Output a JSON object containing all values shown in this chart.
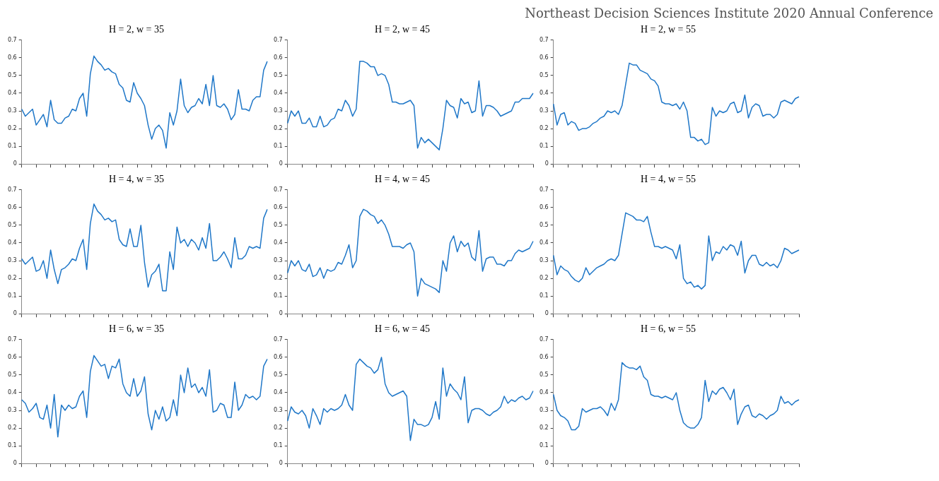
{
  "chart_data": [
    {
      "type": "line",
      "title": "H = 2, w = 35",
      "categories": [
        null,
        null,
        null,
        null,
        null,
        null,
        null,
        null,
        null,
        null,
        null,
        null,
        null,
        null,
        null,
        null,
        null,
        null,
        null,
        null,
        null,
        null,
        null,
        null,
        null,
        null,
        null,
        null,
        null,
        null,
        null,
        null,
        null,
        null,
        null,
        null,
        null,
        null,
        null,
        null,
        null,
        null,
        null,
        null,
        null,
        null,
        null,
        null,
        null,
        null,
        null,
        null,
        null,
        null,
        null,
        null,
        null,
        null,
        null,
        null,
        null,
        null,
        null,
        null,
        null,
        null,
        null,
        null,
        null
      ],
      "series": [
        {
          "color": "#1f77c8",
          "values": [
            0.31,
            0.27,
            0.29,
            0.31,
            0.22,
            0.25,
            0.28,
            0.21,
            0.36,
            0.25,
            0.23,
            0.23,
            0.26,
            0.27,
            0.31,
            0.3,
            0.37,
            0.4,
            0.27,
            0.51,
            0.61,
            0.58,
            0.56,
            0.53,
            0.54,
            0.52,
            0.51,
            0.45,
            0.43,
            0.36,
            0.35,
            0.46,
            0.4,
            0.37,
            0.33,
            0.22,
            0.14,
            0.2,
            0.22,
            0.19,
            0.09,
            0.29,
            0.22,
            0.3,
            0.48,
            0.33,
            0.29,
            0.32,
            0.33,
            0.37,
            0.34,
            0.45,
            0.33,
            0.5,
            0.33,
            0.32,
            0.34,
            0.31,
            0.25,
            0.28,
            0.42,
            0.31,
            0.31,
            0.3,
            0.36,
            0.38,
            0.38,
            0.53,
            0.58
          ]
        }
      ],
      "ylim": [
        0,
        0.7
      ],
      "yticks": [
        0,
        0.1,
        0.2,
        0.3,
        0.4,
        0.5,
        0.6,
        0.7
      ],
      "tick_labels": "y",
      "grid": false,
      "legend": false
    },
    {
      "type": "line",
      "title": "H = 2, w = 45",
      "categories": [
        null,
        null,
        null,
        null,
        null,
        null,
        null,
        null,
        null,
        null,
        null,
        null,
        null,
        null,
        null,
        null,
        null,
        null,
        null,
        null,
        null,
        null,
        null,
        null,
        null,
        null,
        null,
        null,
        null,
        null,
        null,
        null,
        null,
        null,
        null,
        null,
        null,
        null,
        null,
        null,
        null,
        null,
        null,
        null,
        null,
        null,
        null,
        null,
        null,
        null,
        null,
        null,
        null,
        null,
        null,
        null,
        null,
        null,
        null,
        null,
        null,
        null,
        null,
        null,
        null,
        null,
        null,
        null,
        null
      ],
      "series": [
        {
          "color": "#1f77c8",
          "values": [
            0.23,
            0.3,
            0.27,
            0.3,
            0.23,
            0.23,
            0.26,
            0.21,
            0.21,
            0.27,
            0.21,
            0.22,
            0.25,
            0.26,
            0.31,
            0.3,
            0.36,
            0.33,
            0.27,
            0.31,
            0.58,
            0.58,
            0.57,
            0.55,
            0.55,
            0.5,
            0.51,
            0.5,
            0.45,
            0.35,
            0.35,
            0.34,
            0.34,
            0.35,
            0.36,
            0.33,
            0.09,
            0.15,
            0.12,
            0.14,
            0.12,
            0.1,
            0.08,
            0.2,
            0.36,
            0.33,
            0.32,
            0.26,
            0.37,
            0.34,
            0.35,
            0.29,
            0.3,
            0.47,
            0.27,
            0.33,
            0.33,
            0.32,
            0.3,
            0.27,
            0.28,
            0.29,
            0.3,
            0.35,
            0.35,
            0.37,
            0.37,
            0.37,
            0.4
          ]
        }
      ],
      "ylim": [
        0,
        0.7
      ],
      "yticks": [
        0,
        0.1,
        0.2,
        0.3,
        0.4,
        0.5,
        0.6,
        0.7
      ],
      "tick_labels": "y",
      "grid": false,
      "legend": false
    },
    {
      "type": "line",
      "title": "H = 2, w = 55",
      "annotations": [
        "Northeast Decision Sciences Institute 2020 Annual Conference"
      ],
      "categories": [
        null,
        null,
        null,
        null,
        null,
        null,
        null,
        null,
        null,
        null,
        null,
        null,
        null,
        null,
        null,
        null,
        null,
        null,
        null,
        null,
        null,
        null,
        null,
        null,
        null,
        null,
        null,
        null,
        null,
        null,
        null,
        null,
        null,
        null,
        null,
        null,
        null,
        null,
        null,
        null,
        null,
        null,
        null,
        null,
        null,
        null,
        null,
        null,
        null,
        null,
        null,
        null,
        null,
        null,
        null,
        null,
        null,
        null,
        null,
        null,
        null,
        null,
        null,
        null,
        null,
        null,
        null,
        null,
        null
      ],
      "series": [
        {
          "color": "#1f77c8",
          "values": [
            0.34,
            0.22,
            0.28,
            0.29,
            0.22,
            0.24,
            0.23,
            0.19,
            0.2,
            0.2,
            0.21,
            0.23,
            0.24,
            0.26,
            0.27,
            0.3,
            0.29,
            0.3,
            0.28,
            0.33,
            0.45,
            0.57,
            0.56,
            0.56,
            0.53,
            0.52,
            0.51,
            0.48,
            0.47,
            0.44,
            0.35,
            0.34,
            0.34,
            0.33,
            0.34,
            0.31,
            0.35,
            0.3,
            0.15,
            0.15,
            0.13,
            0.14,
            0.11,
            0.12,
            0.32,
            0.27,
            0.3,
            0.29,
            0.3,
            0.34,
            0.35,
            0.29,
            0.3,
            0.39,
            0.26,
            0.32,
            0.34,
            0.33,
            0.27,
            0.28,
            0.28,
            0.26,
            0.28,
            0.35,
            0.36,
            0.35,
            0.34,
            0.37,
            0.38
          ]
        }
      ],
      "ylim": [
        0,
        0.7
      ],
      "yticks": [
        0,
        0.1,
        0.2,
        0.3,
        0.4,
        0.5,
        0.6,
        0.7
      ],
      "tick_labels": "y",
      "grid": false,
      "legend": false
    },
    {
      "type": "line",
      "title": "H = 4, w = 35",
      "categories": [
        null,
        null,
        null,
        null,
        null,
        null,
        null,
        null,
        null,
        null,
        null,
        null,
        null,
        null,
        null,
        null,
        null,
        null,
        null,
        null,
        null,
        null,
        null,
        null,
        null,
        null,
        null,
        null,
        null,
        null,
        null,
        null,
        null,
        null,
        null,
        null,
        null,
        null,
        null,
        null,
        null,
        null,
        null,
        null,
        null,
        null,
        null,
        null,
        null,
        null,
        null,
        null,
        null,
        null,
        null,
        null,
        null,
        null,
        null,
        null,
        null,
        null,
        null,
        null,
        null,
        null,
        null,
        null,
        null
      ],
      "series": [
        {
          "color": "#1f77c8",
          "values": [
            0.31,
            0.28,
            0.3,
            0.32,
            0.24,
            0.25,
            0.3,
            0.2,
            0.36,
            0.25,
            0.17,
            0.25,
            0.26,
            0.28,
            0.31,
            0.3,
            0.37,
            0.42,
            0.25,
            0.51,
            0.62,
            0.58,
            0.56,
            0.53,
            0.54,
            0.52,
            0.53,
            0.42,
            0.39,
            0.38,
            0.48,
            0.38,
            0.38,
            0.5,
            0.29,
            0.15,
            0.22,
            0.24,
            0.28,
            0.13,
            0.13,
            0.35,
            0.25,
            0.49,
            0.4,
            0.42,
            0.38,
            0.42,
            0.4,
            0.36,
            0.43,
            0.37,
            0.51,
            0.3,
            0.3,
            0.32,
            0.35,
            0.31,
            0.26,
            0.43,
            0.31,
            0.31,
            0.33,
            0.38,
            0.37,
            0.38,
            0.37,
            0.54,
            0.59
          ]
        }
      ],
      "ylim": [
        0,
        0.7
      ],
      "yticks": [
        0,
        0.1,
        0.2,
        0.3,
        0.4,
        0.5,
        0.6,
        0.7
      ],
      "tick_labels": "y",
      "grid": false,
      "legend": false
    },
    {
      "type": "line",
      "title": "H = 4, w = 45",
      "categories": [
        null,
        null,
        null,
        null,
        null,
        null,
        null,
        null,
        null,
        null,
        null,
        null,
        null,
        null,
        null,
        null,
        null,
        null,
        null,
        null,
        null,
        null,
        null,
        null,
        null,
        null,
        null,
        null,
        null,
        null,
        null,
        null,
        null,
        null,
        null,
        null,
        null,
        null,
        null,
        null,
        null,
        null,
        null,
        null,
        null,
        null,
        null,
        null,
        null,
        null,
        null,
        null,
        null,
        null,
        null,
        null,
        null,
        null,
        null,
        null,
        null,
        null,
        null,
        null,
        null,
        null,
        null,
        null,
        null
      ],
      "series": [
        {
          "color": "#1f77c8",
          "values": [
            0.23,
            0.3,
            0.27,
            0.3,
            0.25,
            0.24,
            0.28,
            0.21,
            0.22,
            0.26,
            0.2,
            0.25,
            0.24,
            0.25,
            0.29,
            0.28,
            0.33,
            0.39,
            0.26,
            0.3,
            0.55,
            0.59,
            0.58,
            0.56,
            0.55,
            0.51,
            0.53,
            0.5,
            0.45,
            0.38,
            0.38,
            0.38,
            0.37,
            0.39,
            0.4,
            0.35,
            0.1,
            0.2,
            0.17,
            0.16,
            0.15,
            0.14,
            0.12,
            0.3,
            0.24,
            0.4,
            0.44,
            0.35,
            0.41,
            0.38,
            0.4,
            0.32,
            0.3,
            0.47,
            0.24,
            0.31,
            0.32,
            0.32,
            0.28,
            0.28,
            0.27,
            0.3,
            0.3,
            0.34,
            0.36,
            0.35,
            0.36,
            0.37,
            0.41
          ]
        }
      ],
      "ylim": [
        0,
        0.7
      ],
      "yticks": [
        0,
        0.1,
        0.2,
        0.3,
        0.4,
        0.5,
        0.6,
        0.7
      ],
      "tick_labels": "y",
      "grid": false,
      "legend": false
    },
    {
      "type": "line",
      "title": "H = 4, w = 55",
      "categories": [
        null,
        null,
        null,
        null,
        null,
        null,
        null,
        null,
        null,
        null,
        null,
        null,
        null,
        null,
        null,
        null,
        null,
        null,
        null,
        null,
        null,
        null,
        null,
        null,
        null,
        null,
        null,
        null,
        null,
        null,
        null,
        null,
        null,
        null,
        null,
        null,
        null,
        null,
        null,
        null,
        null,
        null,
        null,
        null,
        null,
        null,
        null,
        null,
        null,
        null,
        null,
        null,
        null,
        null,
        null,
        null,
        null,
        null,
        null,
        null,
        null,
        null,
        null,
        null,
        null,
        null,
        null,
        null,
        null
      ],
      "series": [
        {
          "color": "#1f77c8",
          "values": [
            0.33,
            0.22,
            0.27,
            0.25,
            0.24,
            0.21,
            0.19,
            0.18,
            0.2,
            0.26,
            0.22,
            0.24,
            0.26,
            0.27,
            0.28,
            0.3,
            0.31,
            0.3,
            0.33,
            0.45,
            0.57,
            0.56,
            0.55,
            0.53,
            0.53,
            0.52,
            0.55,
            0.46,
            0.38,
            0.38,
            0.37,
            0.38,
            0.37,
            0.36,
            0.31,
            0.39,
            0.2,
            0.17,
            0.18,
            0.15,
            0.16,
            0.14,
            0.16,
            0.44,
            0.3,
            0.35,
            0.34,
            0.38,
            0.36,
            0.39,
            0.38,
            0.33,
            0.41,
            0.23,
            0.3,
            0.33,
            0.33,
            0.28,
            0.27,
            0.29,
            0.27,
            0.28,
            0.26,
            0.3,
            0.37,
            0.36,
            0.34,
            0.35,
            0.36
          ]
        }
      ],
      "ylim": [
        0,
        0.7
      ],
      "yticks": [
        0,
        0.1,
        0.2,
        0.3,
        0.4,
        0.5,
        0.6,
        0.7
      ],
      "tick_labels": "y",
      "grid": false,
      "legend": false
    },
    {
      "type": "line",
      "title": "H = 6, w = 35",
      "categories": [
        null,
        null,
        null,
        null,
        null,
        null,
        null,
        null,
        null,
        null,
        null,
        null,
        null,
        null,
        null,
        null,
        null,
        null,
        null,
        null,
        null,
        null,
        null,
        null,
        null,
        null,
        null,
        null,
        null,
        null,
        null,
        null,
        null,
        null,
        null,
        null,
        null,
        null,
        null,
        null,
        null,
        null,
        null,
        null,
        null,
        null,
        null,
        null,
        null,
        null,
        null,
        null,
        null,
        null,
        null,
        null,
        null,
        null,
        null,
        null,
        null,
        null,
        null,
        null,
        null,
        null,
        null,
        null,
        null
      ],
      "series": [
        {
          "color": "#1f77c8",
          "values": [
            0.36,
            0.34,
            0.29,
            0.31,
            0.34,
            0.26,
            0.25,
            0.33,
            0.2,
            0.39,
            0.15,
            0.33,
            0.3,
            0.33,
            0.31,
            0.32,
            0.38,
            0.41,
            0.26,
            0.52,
            0.61,
            0.58,
            0.55,
            0.56,
            0.48,
            0.55,
            0.54,
            0.59,
            0.45,
            0.4,
            0.38,
            0.48,
            0.38,
            0.41,
            0.49,
            0.28,
            0.19,
            0.3,
            0.25,
            0.32,
            0.24,
            0.26,
            0.36,
            0.27,
            0.5,
            0.4,
            0.54,
            0.43,
            0.45,
            0.4,
            0.43,
            0.38,
            0.53,
            0.29,
            0.3,
            0.34,
            0.33,
            0.26,
            0.26,
            0.46,
            0.3,
            0.33,
            0.39,
            0.37,
            0.38,
            0.36,
            0.38,
            0.55,
            0.59
          ]
        }
      ],
      "ylim": [
        0,
        0.7
      ],
      "yticks": [
        0,
        0.1,
        0.2,
        0.3,
        0.4,
        0.5,
        0.6,
        0.7
      ],
      "tick_labels": "y",
      "grid": false,
      "legend": false
    },
    {
      "type": "line",
      "title": "H = 6, w = 45",
      "categories": [
        null,
        null,
        null,
        null,
        null,
        null,
        null,
        null,
        null,
        null,
        null,
        null,
        null,
        null,
        null,
        null,
        null,
        null,
        null,
        null,
        null,
        null,
        null,
        null,
        null,
        null,
        null,
        null,
        null,
        null,
        null,
        null,
        null,
        null,
        null,
        null,
        null,
        null,
        null,
        null,
        null,
        null,
        null,
        null,
        null,
        null,
        null,
        null,
        null,
        null,
        null,
        null,
        null,
        null,
        null,
        null,
        null,
        null,
        null,
        null,
        null,
        null,
        null,
        null,
        null,
        null,
        null,
        null,
        null
      ],
      "series": [
        {
          "color": "#1f77c8",
          "values": [
            0.24,
            0.32,
            0.29,
            0.28,
            0.3,
            0.27,
            0.2,
            0.31,
            0.27,
            0.22,
            0.31,
            0.29,
            0.31,
            0.3,
            0.31,
            0.33,
            0.39,
            0.33,
            0.3,
            0.56,
            0.59,
            0.57,
            0.55,
            0.54,
            0.51,
            0.53,
            0.6,
            0.45,
            0.4,
            0.38,
            0.39,
            0.4,
            0.41,
            0.38,
            0.13,
            0.25,
            0.22,
            0.22,
            0.21,
            0.22,
            0.26,
            0.35,
            0.25,
            0.54,
            0.38,
            0.45,
            0.42,
            0.4,
            0.36,
            0.49,
            0.23,
            0.3,
            0.31,
            0.31,
            0.3,
            0.28,
            0.27,
            0.29,
            0.3,
            0.32,
            0.38,
            0.34,
            0.36,
            0.35,
            0.37,
            0.38,
            0.36,
            0.37,
            0.41
          ]
        }
      ],
      "ylim": [
        0,
        0.7
      ],
      "yticks": [
        0,
        0.1,
        0.2,
        0.3,
        0.4,
        0.5,
        0.6,
        0.7
      ],
      "tick_labels": "y",
      "grid": false,
      "legend": false
    },
    {
      "type": "line",
      "title": "H = 6, w = 55",
      "categories": [
        null,
        null,
        null,
        null,
        null,
        null,
        null,
        null,
        null,
        null,
        null,
        null,
        null,
        null,
        null,
        null,
        null,
        null,
        null,
        null,
        null,
        null,
        null,
        null,
        null,
        null,
        null,
        null,
        null,
        null,
        null,
        null,
        null,
        null,
        null,
        null,
        null,
        null,
        null,
        null,
        null,
        null,
        null,
        null,
        null,
        null,
        null,
        null,
        null,
        null,
        null,
        null,
        null,
        null,
        null,
        null,
        null,
        null,
        null,
        null,
        null,
        null,
        null,
        null,
        null,
        null,
        null,
        null,
        null
      ],
      "series": [
        {
          "color": "#1f77c8",
          "values": [
            0.39,
            0.3,
            0.27,
            0.26,
            0.24,
            0.19,
            0.19,
            0.21,
            0.31,
            0.29,
            0.3,
            0.31,
            0.31,
            0.32,
            0.3,
            0.27,
            0.34,
            0.3,
            0.36,
            0.57,
            0.55,
            0.54,
            0.54,
            0.53,
            0.55,
            0.49,
            0.47,
            0.39,
            0.38,
            0.38,
            0.37,
            0.38,
            0.37,
            0.36,
            0.4,
            0.3,
            0.23,
            0.21,
            0.2,
            0.2,
            0.22,
            0.26,
            0.47,
            0.35,
            0.41,
            0.39,
            0.42,
            0.43,
            0.4,
            0.36,
            0.42,
            0.22,
            0.28,
            0.32,
            0.33,
            0.27,
            0.26,
            0.28,
            0.27,
            0.25,
            0.27,
            0.28,
            0.3,
            0.38,
            0.34,
            0.35,
            0.33,
            0.35,
            0.36
          ]
        }
      ],
      "ylim": [
        0,
        0.7
      ],
      "yticks": [
        0,
        0.1,
        0.2,
        0.3,
        0.4,
        0.5,
        0.6,
        0.7
      ],
      "tick_labels": "y",
      "grid": false,
      "legend": false
    }
  ]
}
